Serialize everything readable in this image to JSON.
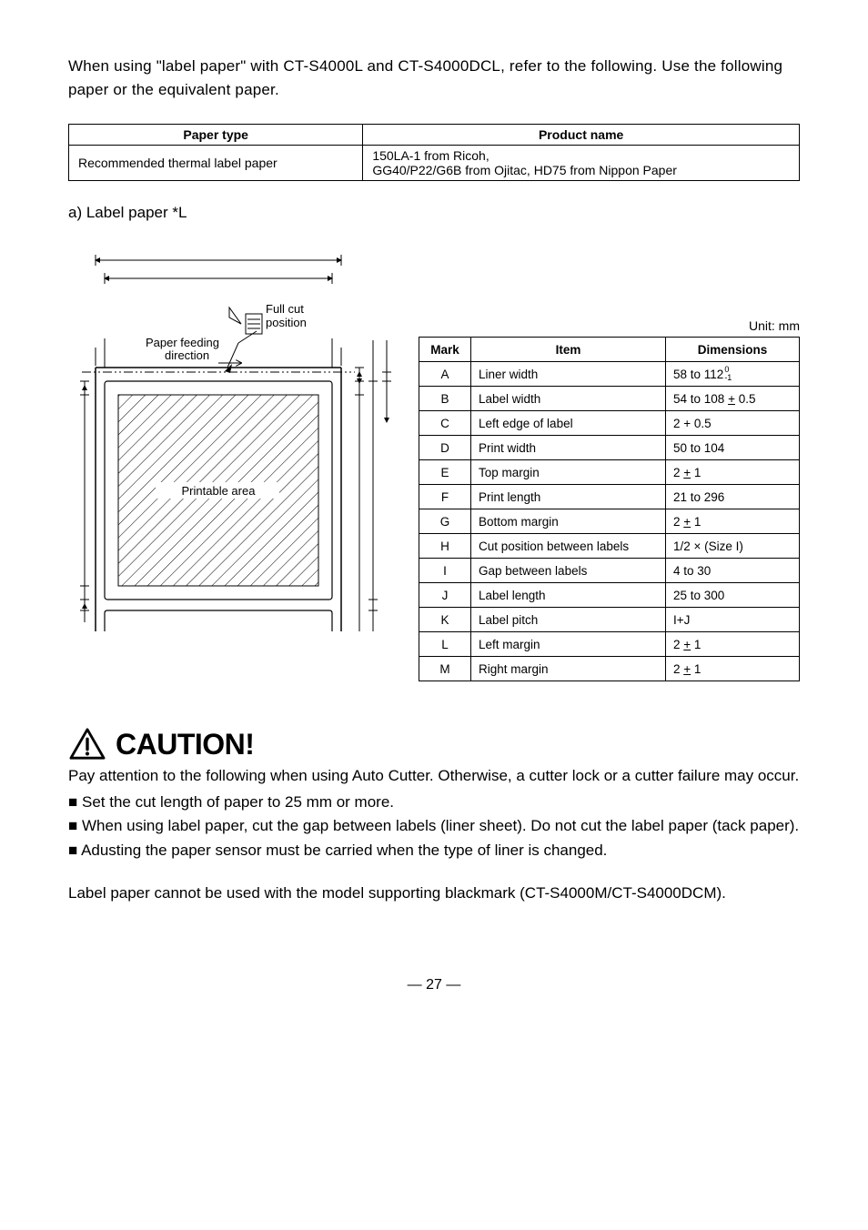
{
  "intro": "When using \"label paper\" with CT-S4000L and CT-S4000DCL, refer to the following.  Use the following paper or the equivalent paper.",
  "paper_table": {
    "headers": [
      "Paper type",
      "Product name"
    ],
    "rows": [
      [
        "Recommended thermal label paper",
        " 150LA-1 from Ricoh,\n GG40/P22/G6B from Ojitac, HD75 from Nippon Paper"
      ]
    ]
  },
  "section_label": "a) Label paper *L",
  "diagram": {
    "full_cut_label_1": "Full cut",
    "full_cut_label_2": "position",
    "feed_label_1": "Paper feeding",
    "feed_label_2": "direction",
    "printable_label": "Printable area"
  },
  "unit_label": "Unit: mm",
  "spec_table": {
    "headers": [
      "Mark",
      "Item",
      "Dimensions"
    ],
    "rows": [
      {
        "mark": "A",
        "item": "Liner width",
        "dim_html": "<span class=\"tolerance-wrap\">58 to 112<span class=\"tol-sup\">0</span><span class=\"tol-sub\">-1</span></span>&nbsp;&nbsp;"
      },
      {
        "mark": "B",
        "item": "Label width",
        "dim_html": "54 to 108 <span style=\"text-decoration:underline\">+</span> 0.5"
      },
      {
        "mark": "C",
        "item": "Left edge of label",
        "dim_html": "2 + 0.5"
      },
      {
        "mark": "D",
        "item": "Print width",
        "dim_html": "50 to 104"
      },
      {
        "mark": "E",
        "item": "Top margin",
        "dim_html": "2 <span style=\"text-decoration:underline\">+</span> 1"
      },
      {
        "mark": "F",
        "item": "Print length",
        "dim_html": "21 to 296"
      },
      {
        "mark": "G",
        "item": "Bottom margin",
        "dim_html": "2 <span style=\"text-decoration:underline\">+</span> 1"
      },
      {
        "mark": "H",
        "item": "Cut position between labels",
        "dim_html": "1/2 × (Size I)"
      },
      {
        "mark": "I",
        "item": "Gap between labels",
        "dim_html": "4 to 30"
      },
      {
        "mark": "J",
        "item": "Label length",
        "dim_html": "25 to 300"
      },
      {
        "mark": "K",
        "item": "Label pitch",
        "dim_html": "I+J"
      },
      {
        "mark": "L",
        "item": "Left margin",
        "dim_html": "2 <span style=\"text-decoration:underline\">+</span> 1"
      },
      {
        "mark": "M",
        "item": "Right margin",
        "dim_html": "2 <span style=\"text-decoration:underline\">+</span> 1"
      }
    ]
  },
  "caution": {
    "title": "CAUTION!",
    "intro": "Pay attention to the following when using Auto Cutter.  Otherwise, a cutter lock or a cutter failure may occur.",
    "items": [
      "Set the cut length of paper to 25 mm or more.",
      "When using label paper, cut the gap between labels (liner sheet).  Do not cut the label paper (tack paper).",
      "Adusting the paper sensor must be carried when the type of liner is changed."
    ],
    "footer": "Label paper cannot be used with the model supporting blackmark (CT-S4000M/CT-S4000DCM)."
  },
  "page_number": "— 27 —"
}
